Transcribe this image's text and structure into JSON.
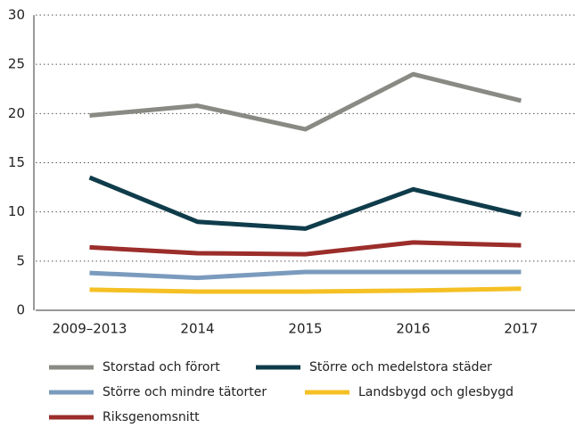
{
  "chart_data": {
    "type": "line",
    "categories": [
      "2009–2013",
      "2014",
      "2015",
      "2016",
      "2017"
    ],
    "series": [
      {
        "name": "Storstad och förort",
        "color": "#8a8a84",
        "values": [
          19.8,
          20.8,
          18.4,
          24.0,
          21.3
        ]
      },
      {
        "name": "Större och medelstora städer",
        "color": "#0f3c4b",
        "values": [
          13.5,
          9.0,
          8.3,
          12.3,
          9.7
        ]
      },
      {
        "name": "Större och mindre tätorter",
        "color": "#7a9bbd",
        "values": [
          3.8,
          3.3,
          3.9,
          3.9,
          3.9
        ]
      },
      {
        "name": "Landsbygd och glesbygd",
        "color": "#f5c024",
        "values": [
          2.1,
          1.9,
          1.9,
          2.0,
          2.2
        ]
      },
      {
        "name": "Riksgenomsnitt",
        "color": "#9b2d2a",
        "values": [
          6.4,
          5.8,
          5.7,
          6.9,
          6.6
        ]
      }
    ],
    "ylim": [
      0,
      30
    ],
    "yticks": [
      0,
      5,
      10,
      15,
      20,
      25,
      30
    ],
    "grid": true,
    "legend": "bottom"
  }
}
